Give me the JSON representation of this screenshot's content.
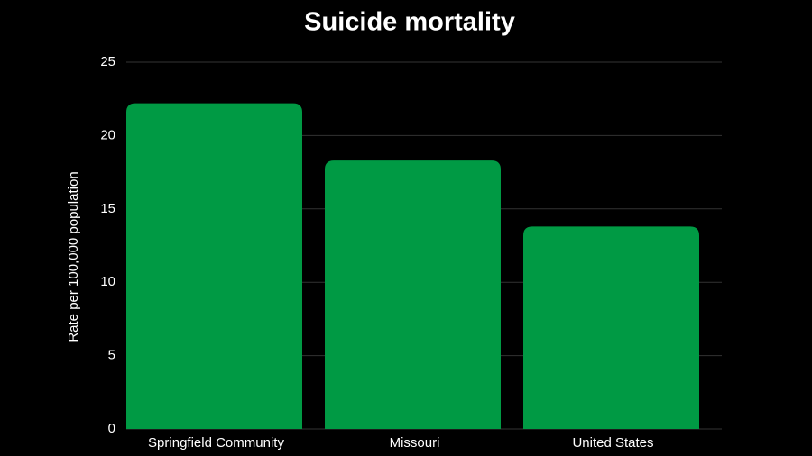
{
  "chart_data": {
    "type": "bar",
    "title": "Suicide mortality",
    "y_label": "Rate per 100,000 population",
    "categories": [
      "Springfield Community",
      "Missouri",
      "United States"
    ],
    "values": [
      22.2,
      18.3,
      13.8
    ],
    "color": "#009a44",
    "ylim": [
      0,
      25
    ],
    "yticks": [
      0,
      5,
      10,
      15,
      20,
      25
    ],
    "grid": true
  }
}
